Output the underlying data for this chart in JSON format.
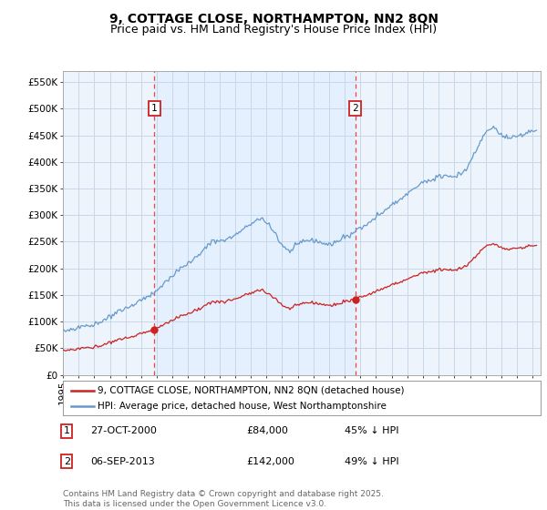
{
  "title": "9, COTTAGE CLOSE, NORTHAMPTON, NN2 8QN",
  "subtitle": "Price paid vs. HM Land Registry's House Price Index (HPI)",
  "ylim": [
    0,
    570000
  ],
  "yticks": [
    0,
    50000,
    100000,
    150000,
    200000,
    250000,
    300000,
    350000,
    400000,
    450000,
    500000,
    550000
  ],
  "ytick_labels": [
    "£0",
    "£50K",
    "£100K",
    "£150K",
    "£200K",
    "£250K",
    "£300K",
    "£350K",
    "£400K",
    "£450K",
    "£500K",
    "£550K"
  ],
  "background_color": "#ffffff",
  "plot_bg_color": "#eef4fb",
  "grid_color": "#c8d8e8",
  "hpi_color": "#6699cc",
  "price_color": "#cc2222",
  "vline_color": "#ee3333",
  "shade_color": "#ddeeff",
  "sale1_x": 2000.83,
  "sale1_y": 84000,
  "sale1_label": "1",
  "sale2_x": 2013.68,
  "sale2_y": 142000,
  "sale2_label": "2",
  "xlim_start": 1995.0,
  "xlim_end": 2025.5,
  "legend_entries": [
    "9, COTTAGE CLOSE, NORTHAMPTON, NN2 8QN (detached house)",
    "HPI: Average price, detached house, West Northamptonshire"
  ],
  "annotation1": [
    "1",
    "27-OCT-2000",
    "£84,000",
    "45% ↓ HPI"
  ],
  "annotation2": [
    "2",
    "06-SEP-2013",
    "£142,000",
    "49% ↓ HPI"
  ],
  "footnote": "Contains HM Land Registry data © Crown copyright and database right 2025.\nThis data is licensed under the Open Government Licence v3.0.",
  "title_fontsize": 10,
  "subtitle_fontsize": 9,
  "tick_fontsize": 7.5,
  "legend_fontsize": 7.5,
  "annotation_fontsize": 8,
  "footnote_fontsize": 6.5
}
